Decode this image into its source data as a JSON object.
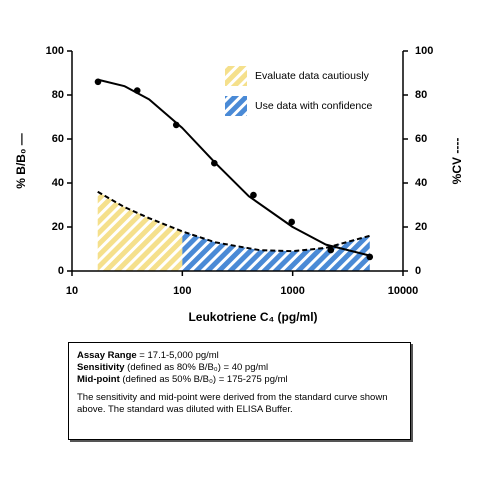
{
  "chart_data": {
    "type": "scatter",
    "xlabel": "Leukotriene C₄ (pg/ml)",
    "ylabel": "% B/B₀ —",
    "y2label": "%CV ----",
    "xlog": true,
    "xlim": [
      10,
      10000
    ],
    "xticks": [
      10,
      100,
      1000,
      10000
    ],
    "ylim": [
      0,
      100
    ],
    "yticks": [
      0,
      20,
      40,
      60,
      80,
      100
    ],
    "y2lim": [
      0,
      100
    ],
    "y2ticks": [
      0,
      20,
      40,
      60,
      80,
      100
    ],
    "legend": "upper center",
    "points": {
      "color": "#000000",
      "x": [
        17.2,
        39,
        88,
        195,
        441,
        980,
        2215,
        5000
      ],
      "values": [
        86,
        82,
        66.4,
        49,
        34.5,
        22.3,
        9.5,
        6.4
      ]
    },
    "fit": {
      "color": "#000000",
      "x": [
        17.1,
        30,
        50,
        100,
        200,
        400,
        1000,
        2000,
        5000
      ],
      "values": [
        87,
        84,
        78,
        65,
        49,
        34,
        20,
        12,
        7
      ]
    },
    "cv": {
      "color": "#000000",
      "axis": "y2",
      "x": [
        17.1,
        30,
        50,
        100,
        200,
        500,
        1000,
        2000,
        5000
      ],
      "values": [
        36,
        29,
        24,
        18,
        13,
        9.5,
        9,
        10.5,
        16
      ]
    },
    "regions": [
      {
        "name": "Evaluate data cautiously",
        "color": "#f5e08c",
        "xrange": [
          17.1,
          100
        ]
      },
      {
        "name": "Use data with confidence",
        "color": "#4a8ad6",
        "xrange": [
          100,
          5000
        ]
      }
    ]
  },
  "info": {
    "items": [
      {
        "label": "Assay Range",
        "text": " = 17.1-5,000 pg/ml"
      },
      {
        "label": "Sensitivity",
        "text": " (defined as 80% B/B₀) = 40 pg/ml"
      },
      {
        "label": "Mid-point",
        "text": " (defined as 50% B/B₀) = 175-275 pg/ml"
      }
    ],
    "note": "The sensitivity and mid-point were derived from the standard curve shown above. The standard was diluted with ELISA Buffer."
  }
}
